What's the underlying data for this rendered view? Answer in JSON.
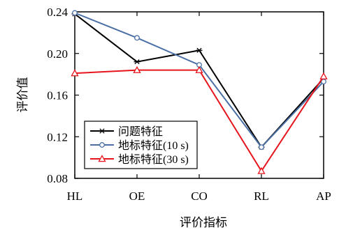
{
  "chart_data": {
    "type": "line",
    "title": "",
    "xlabel": "评价指标",
    "ylabel": "评价值",
    "categories": [
      "HL",
      "OE",
      "CO",
      "RL",
      "AP"
    ],
    "ylim": [
      0.08,
      0.24
    ],
    "yticks": [
      0.08,
      0.12,
      0.16,
      0.2,
      0.24
    ],
    "ytick_labels": [
      "0.08",
      "0.12",
      "0.16",
      "0.20",
      "0.24"
    ],
    "grid": false,
    "legend_position": "bottom-left",
    "series": [
      {
        "name": "问题特征",
        "values": [
          0.238,
          0.192,
          0.203,
          0.11,
          0.176
        ],
        "color": "#000000",
        "marker": "star"
      },
      {
        "name": "地标特征(10 s)",
        "values": [
          0.239,
          0.215,
          0.189,
          0.11,
          0.173
        ],
        "color": "#4a6fa5",
        "marker": "circle"
      },
      {
        "name": "地标特征(30 s)",
        "values": [
          0.181,
          0.184,
          0.184,
          0.087,
          0.178
        ],
        "color": "#e8141c",
        "marker": "triangle"
      }
    ]
  }
}
